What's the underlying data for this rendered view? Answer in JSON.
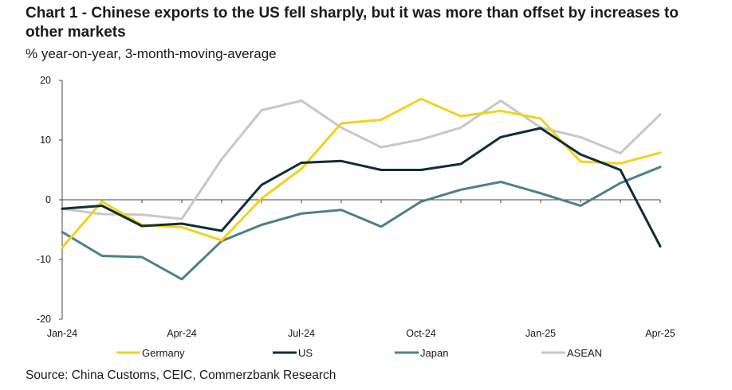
{
  "header": {
    "title": "Chart 1 - Chinese exports to the US fell sharply, but it was more than offset by increases to other markets",
    "subtitle": "% year-on-year, 3-month-moving-average"
  },
  "footer": {
    "source": "Source: China Customs, CEIC, Commerzbank Research"
  },
  "chart_data": {
    "type": "line",
    "title": "Chart 1 - Chinese exports to the US fell sharply, but it was more than offset by increases to other markets",
    "subtitle": "% year-on-year, 3-month-moving-average",
    "xlabel": "",
    "ylabel": "",
    "x": [
      "Jan-24",
      "Feb-24",
      "Mar-24",
      "Apr-24",
      "May-24",
      "Jun-24",
      "Jul-24",
      "Aug-24",
      "Sep-24",
      "Oct-24",
      "Nov-24",
      "Dec-24",
      "Jan-25",
      "Feb-25",
      "Mar-25",
      "Apr-25"
    ],
    "x_tick_labels": [
      "Jan-24",
      "Apr-24",
      "Jul-24",
      "Oct-24",
      "Jan-25",
      "Apr-25"
    ],
    "ylim": [
      -20,
      20
    ],
    "y_ticks": [
      20,
      10,
      0,
      -10,
      -20
    ],
    "grid": false,
    "legend_position": "bottom",
    "series": [
      {
        "name": "Germany",
        "color": "#f2d21b",
        "values": [
          -8.0,
          -0.3,
          -4.2,
          -4.6,
          -6.8,
          0.2,
          5.2,
          12.8,
          13.4,
          16.9,
          14.0,
          14.9,
          13.6,
          6.4,
          6.1,
          7.9
        ]
      },
      {
        "name": "US",
        "color": "#0f2e36",
        "values": [
          -1.5,
          -1.0,
          -4.4,
          -4.0,
          -5.2,
          2.5,
          6.2,
          6.5,
          5.0,
          5.0,
          6.0,
          10.5,
          12.0,
          7.6,
          5.0,
          -7.8
        ]
      },
      {
        "name": "Japan",
        "color": "#4a8286",
        "values": [
          -5.4,
          -9.4,
          -9.6,
          -13.3,
          -6.9,
          -4.2,
          -2.3,
          -1.7,
          -4.5,
          -0.3,
          1.7,
          3.0,
          1.1,
          -1.0,
          2.8,
          5.5
        ]
      },
      {
        "name": "ASEAN",
        "color": "#c8c8c8",
        "values": [
          -1.5,
          -2.4,
          -2.5,
          -3.2,
          6.8,
          15.0,
          16.6,
          12.1,
          8.8,
          10.1,
          12.1,
          16.6,
          12.1,
          10.5,
          7.8,
          14.3
        ]
      }
    ]
  }
}
